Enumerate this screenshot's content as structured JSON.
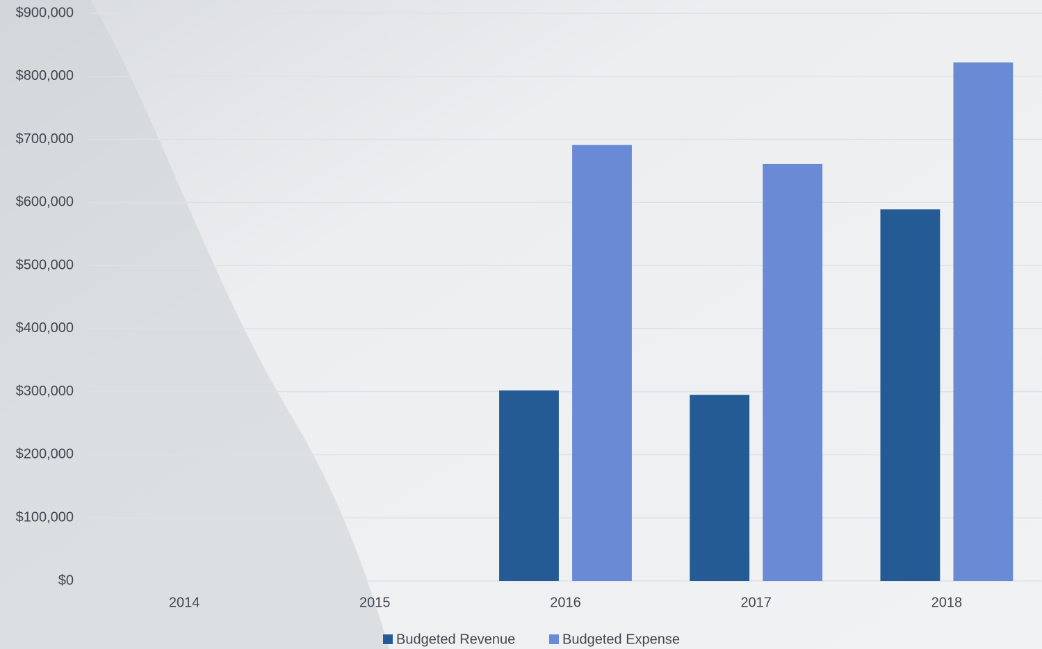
{
  "chart_data": {
    "type": "bar",
    "categories": [
      "2014",
      "2015",
      "2016",
      "2017",
      "2018"
    ],
    "series": [
      {
        "name": "Budgeted Revenue",
        "color": "#245b94",
        "values": [
          null,
          null,
          302000,
          295000,
          589000
        ]
      },
      {
        "name": "Budgeted Expense",
        "color": "#6a8ad6",
        "values": [
          null,
          null,
          691000,
          661000,
          822000
        ]
      }
    ],
    "ylim": [
      0,
      900000
    ],
    "yticks": [
      {
        "value": 0,
        "label": "$0"
      },
      {
        "value": 100000,
        "label": "$100,000"
      },
      {
        "value": 200000,
        "label": "$200,000"
      },
      {
        "value": 300000,
        "label": "$300,000"
      },
      {
        "value": 400000,
        "label": "$400,000"
      },
      {
        "value": 500000,
        "label": "$500,000"
      },
      {
        "value": 600000,
        "label": "$600,000"
      },
      {
        "value": 700000,
        "label": "$700,000"
      },
      {
        "value": 800000,
        "label": "$800,000"
      },
      {
        "value": 900000,
        "label": "$900,000"
      }
    ],
    "grid": true,
    "legend": "bottom"
  }
}
